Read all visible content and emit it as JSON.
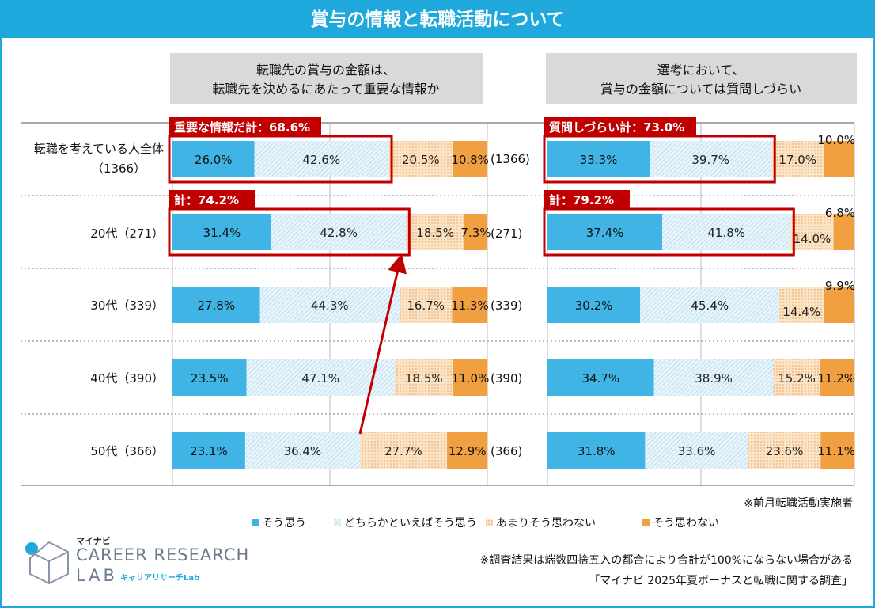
{
  "title": "賞与の情報と転職活動について",
  "panels": [
    {
      "header_line1": "転職先の賞与の金額は、",
      "header_line2": "転職先を決めるにあたって重要な情報か"
    },
    {
      "header_line1": "選考において、",
      "header_line2": "賞与の金額については質問しづらい"
    }
  ],
  "categories": [
    {
      "label": "転職を考えている人全体",
      "count": "（1366）",
      "count_right": "(1366)"
    },
    {
      "label": "20代（271）",
      "count": "",
      "count_right": "(271)"
    },
    {
      "label": "30代（339）",
      "count": "",
      "count_right": "(339)"
    },
    {
      "label": "40代（390）",
      "count": "",
      "count_right": "(390)"
    },
    {
      "label": "50代（366）",
      "count": "",
      "count_right": "(366)"
    }
  ],
  "chart_data": [
    {
      "type": "bar",
      "stacked": true,
      "orientation": "horizontal",
      "title": "転職先の賞与の金額は、転職先を決めるにあたって重要な情報か",
      "categories": [
        "転職を考えている人全体（1366）",
        "20代（271）",
        "30代（339）",
        "40代（390）",
        "50代（366）"
      ],
      "series": [
        {
          "name": "そう思う",
          "values": [
            26.0,
            31.4,
            27.8,
            23.5,
            23.1
          ]
        },
        {
          "name": "どちらかといえばそう思う",
          "values": [
            42.6,
            42.8,
            44.3,
            47.1,
            36.4
          ]
        },
        {
          "name": "あまりそう思わない",
          "values": [
            20.5,
            18.5,
            16.7,
            18.5,
            27.7
          ]
        },
        {
          "name": "そう思わない",
          "values": [
            10.8,
            7.3,
            11.3,
            11.0,
            12.9
          ]
        }
      ],
      "labels": [
        [
          "26.0%",
          "42.6%",
          "20.5%",
          "10.8%"
        ],
        [
          "31.4%",
          "42.8%",
          "18.5%",
          "7.3%"
        ],
        [
          "27.8%",
          "44.3%",
          "16.7%",
          "11.3%"
        ],
        [
          "23.5%",
          "47.1%",
          "18.5%",
          "11.0%"
        ],
        [
          "23.1%",
          "36.4%",
          "27.7%",
          "12.9%"
        ]
      ],
      "xlim": [
        0,
        100
      ],
      "callouts": [
        {
          "row": 0,
          "text": "重要な情報だ計：68.6%"
        },
        {
          "row": 1,
          "text": "計：74.2%"
        }
      ]
    },
    {
      "type": "bar",
      "stacked": true,
      "orientation": "horizontal",
      "title": "選考において、賞与の金額については質問しづらい",
      "categories": [
        "転職を考えている人全体（1366）",
        "20代（271）",
        "30代（339）",
        "40代（390）",
        "50代（366）"
      ],
      "series": [
        {
          "name": "そう思う",
          "values": [
            33.3,
            37.4,
            30.2,
            34.7,
            31.8
          ]
        },
        {
          "name": "どちらかといえばそう思う",
          "values": [
            39.7,
            41.8,
            45.4,
            38.9,
            33.6
          ]
        },
        {
          "name": "あまりそう思わない",
          "values": [
            17.0,
            14.0,
            14.4,
            15.2,
            23.6
          ]
        },
        {
          "name": "そう思わない",
          "values": [
            10.0,
            6.8,
            9.9,
            11.2,
            11.1
          ]
        }
      ],
      "labels": [
        [
          "33.3%",
          "39.7%",
          "17.0%",
          "10.0%"
        ],
        [
          "37.4%",
          "41.8%",
          "14.0%",
          "6.8%"
        ],
        [
          "30.2%",
          "45.4%",
          "14.4%",
          "9.9%"
        ],
        [
          "34.7%",
          "38.9%",
          "15.2%",
          "11.2%"
        ],
        [
          "31.8%",
          "33.6%",
          "23.6%",
          "11.1%"
        ]
      ],
      "xlim": [
        0,
        100
      ],
      "callouts": [
        {
          "row": 0,
          "text": "質問しづらい計：73.0%"
        },
        {
          "row": 1,
          "text": "計：79.2%"
        }
      ]
    }
  ],
  "legend": [
    "そう思う",
    "どちらかといえばそう思う",
    "あまりそう思わない",
    "そう思わない"
  ],
  "colors": {
    "s1": "#40b4e5",
    "s2": "#cfe8f4",
    "s3": "#f4c58e",
    "s4": "#f0a040",
    "accent": "#c00000",
    "header": "#1fa8dc"
  },
  "notes": {
    "respondents": "※前月転職活動実施者",
    "rounding": "※調査結果は端数四捨五入の都合により合計が100%にならない場合がある",
    "source": "「マイナビ 2025年夏ボーナスと転職に関する調査」"
  },
  "logo": {
    "small": "マイナビ",
    "main": "CAREER RESEARCH",
    "lab": "LAB",
    "kana": "キャリアリサーチLab"
  }
}
